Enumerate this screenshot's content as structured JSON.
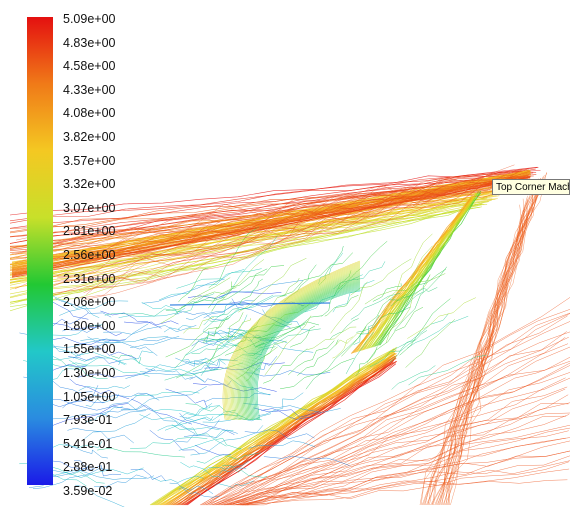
{
  "legend": {
    "labels": [
      "5.09e+00",
      "4.83e+00",
      "4.58e+00",
      "4.33e+00",
      "4.08e+00",
      "3.82e+00",
      "3.57e+00",
      "3.32e+00",
      "3.07e+00",
      "2.81e+00",
      "2.56e+00",
      "2.31e+00",
      "2.06e+00",
      "1.80e+00",
      "1.55e+00",
      "1.30e+00",
      "1.05e+00",
      "7.93e-01",
      "5.41e-01",
      "2.88e-01",
      "3.59e-02"
    ],
    "colors": [
      "#e41010",
      "#f07a18",
      "#f4c822",
      "#c8e02a",
      "#22c833",
      "#22c8c8",
      "#2a8ce0",
      "#1a1ae8"
    ]
  },
  "tooltip": {
    "text": "Top Corner Mach"
  }
}
